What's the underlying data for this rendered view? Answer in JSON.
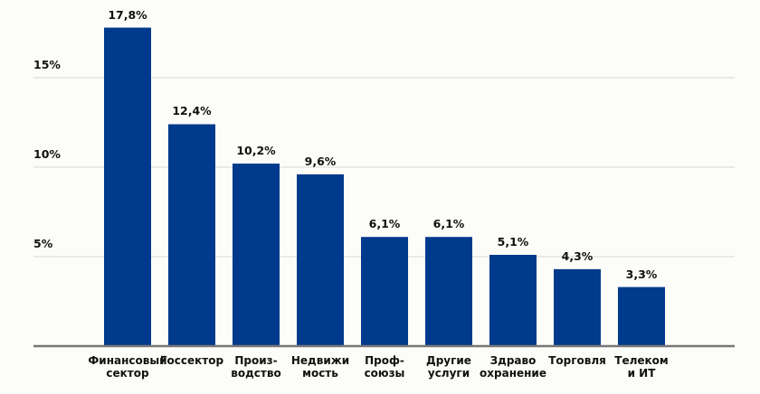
{
  "chart_data": {
    "type": "bar",
    "title": "",
    "xlabel": "",
    "ylabel": "",
    "ylim": [
      0,
      20
    ],
    "grid": true,
    "yticks": [
      5,
      10,
      15
    ],
    "ytick_labels": [
      "5%",
      "10%",
      "15%"
    ],
    "categories": [
      "Финансовый\nсектор",
      "Госсектор",
      "Произ-\nводство",
      "Недвижи\nмость",
      "Проф-\nсоюзы",
      "Другие\nуслуги",
      "Здраво\nохранение",
      "Торговля",
      "Телеком\nи ИТ"
    ],
    "values": [
      17.8,
      12.4,
      10.2,
      9.6,
      6.1,
      6.1,
      5.1,
      4.3,
      3.3
    ],
    "data_labels": [
      "17,8%",
      "12,4%",
      "10,2%",
      "9,6%",
      "6,1%",
      "6,1%",
      "5,1%",
      "4,3%",
      "3,3%"
    ],
    "colors": {
      "bar": "#003a8c",
      "grid": "#e4e4e0",
      "axis": "#777777"
    }
  }
}
